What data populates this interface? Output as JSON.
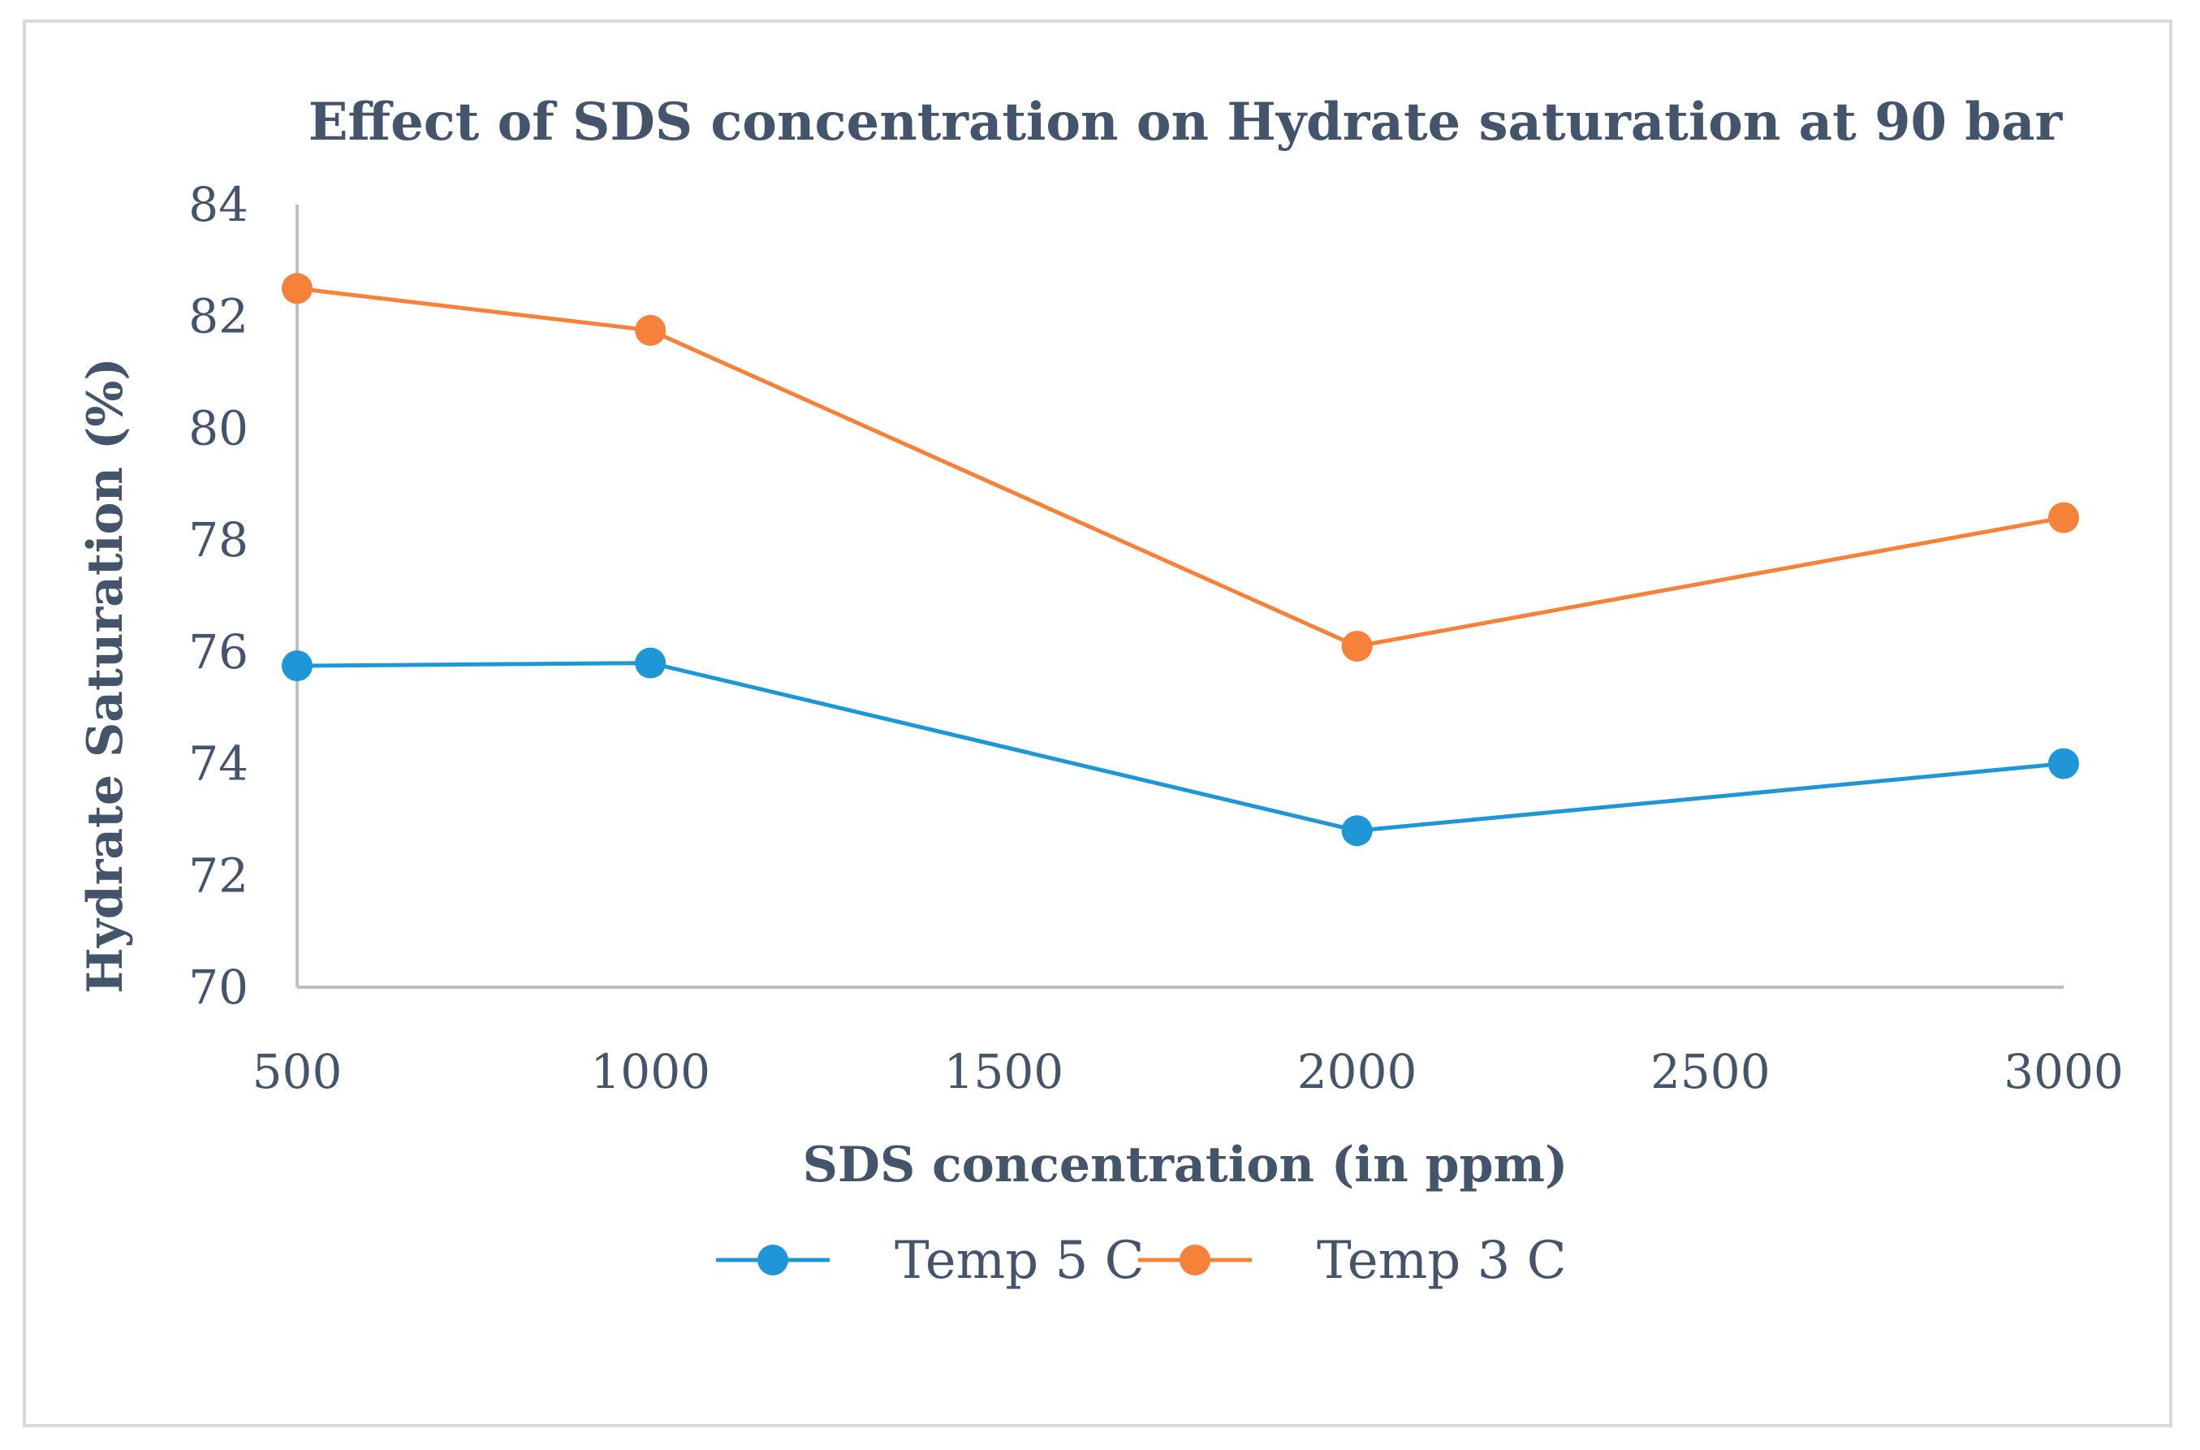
{
  "chart_data": {
    "type": "line",
    "title": "Effect of SDS concentration on Hydrate saturation at 90 bar",
    "xlabel": "SDS concentration (in ppm)",
    "ylabel": "Hydrate Saturation (%)",
    "x": [
      500,
      1000,
      2000,
      3000
    ],
    "xlim": [
      500,
      3000
    ],
    "xticks": [
      "500",
      "1000",
      "1500",
      "2000",
      "2500",
      "3000"
    ],
    "ylim": [
      70,
      84
    ],
    "yticks": [
      "70",
      "72",
      "74",
      "76",
      "78",
      "80",
      "82",
      "84"
    ],
    "grid": false,
    "legend_position": "bottom",
    "series": [
      {
        "name": "Temp 5 C",
        "color": "#1f97d6",
        "values": [
          75.75,
          75.8,
          72.8,
          74.0
        ]
      },
      {
        "name": "Temp 3 C",
        "color": "#f5813a",
        "values": [
          82.5,
          81.75,
          76.1,
          78.4
        ]
      }
    ]
  }
}
